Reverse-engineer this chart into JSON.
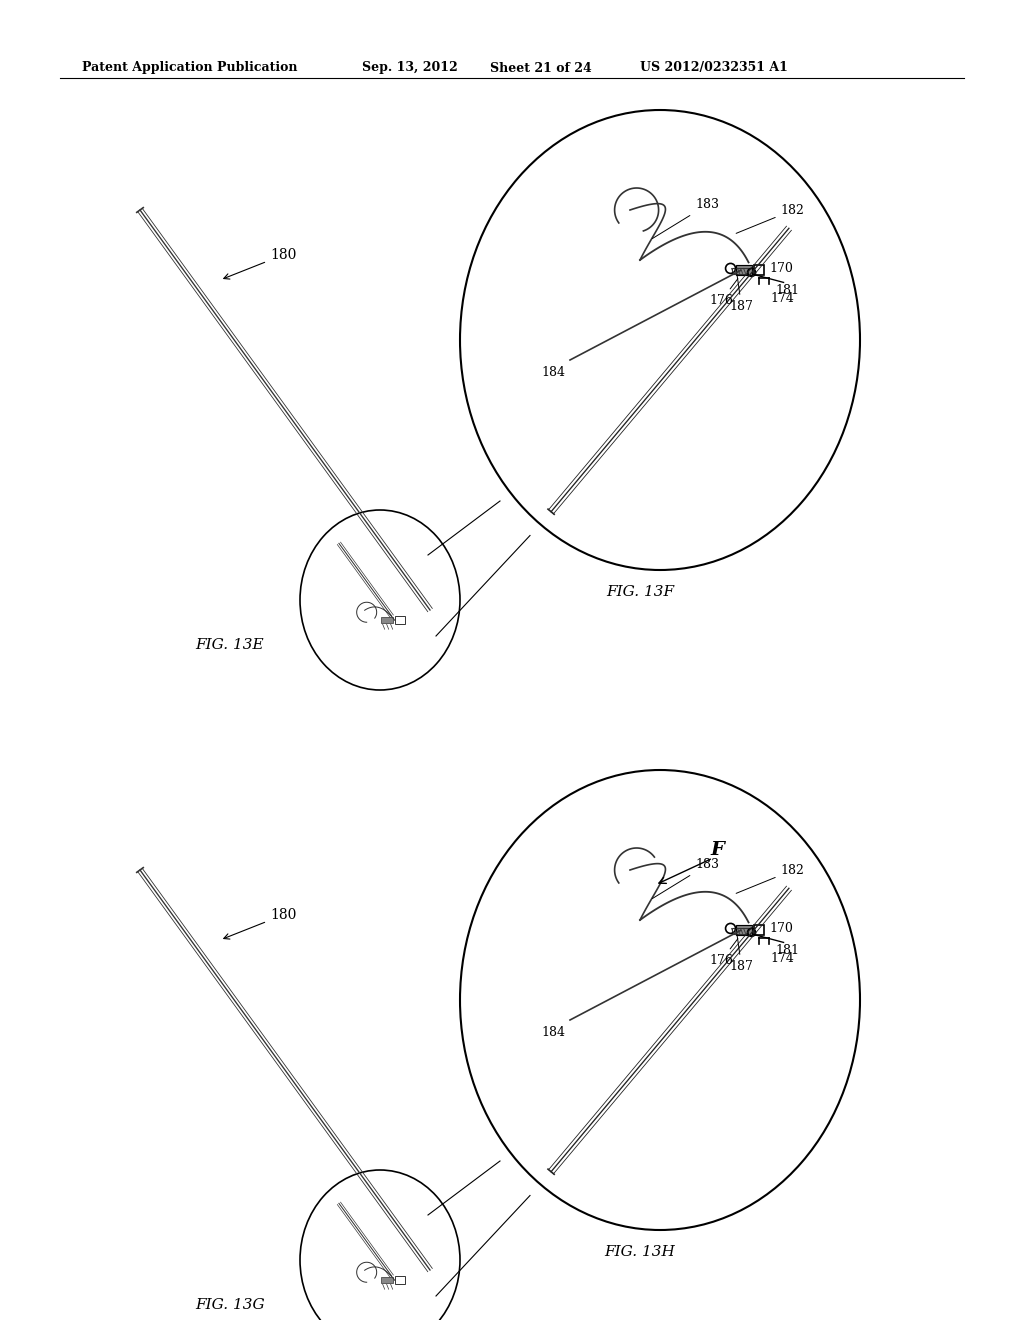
{
  "bg_color": "#ffffff",
  "header_text": "Patent Application Publication",
  "header_date": "Sep. 13, 2012",
  "header_sheet": "Sheet 21 of 24",
  "header_patent": "US 2012/0232351 A1",
  "fig_13e_label": "FIG. 13E",
  "fig_13f_label": "FIG. 13F",
  "fig_13g_label": "FIG. 13G",
  "fig_13h_label": "FIG. 13H",
  "line_color": "#000000"
}
